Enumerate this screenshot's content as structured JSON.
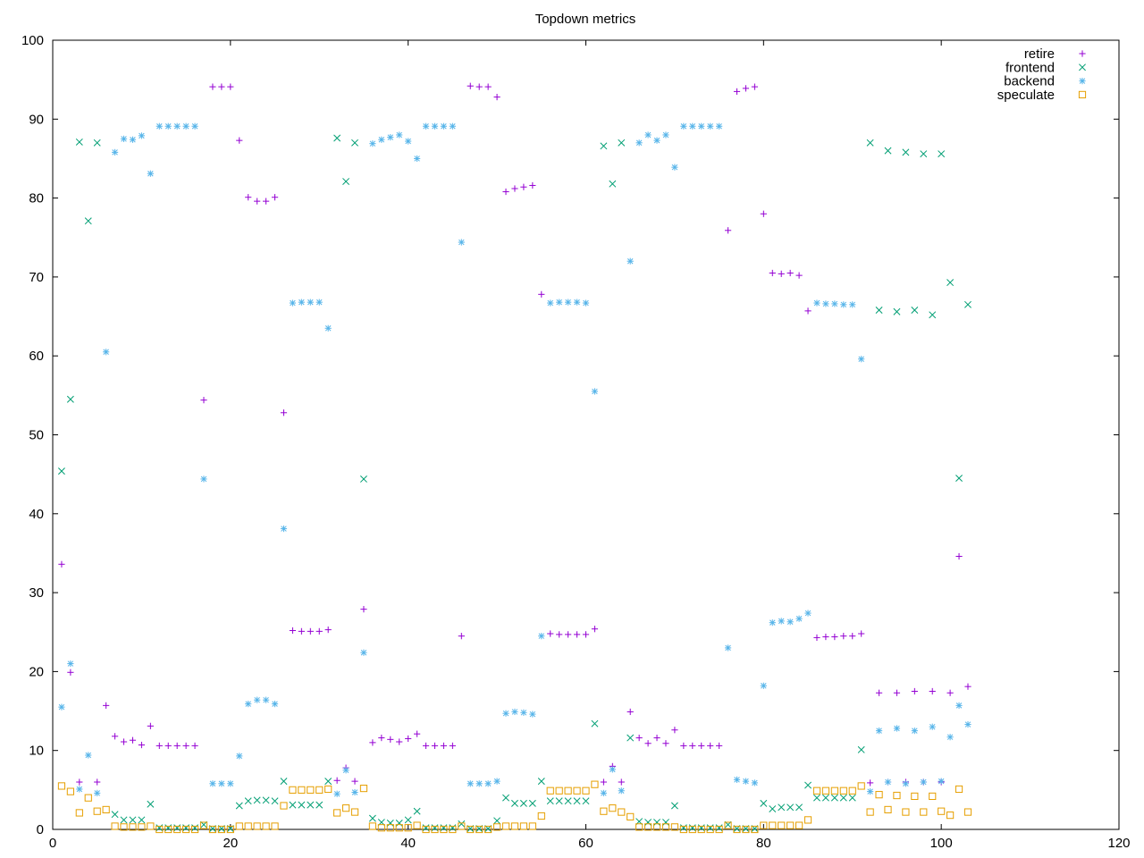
{
  "chart_data": {
    "type": "scatter",
    "title": "Topdown metrics",
    "xlabel": "",
    "ylabel": "",
    "xlim": [
      0,
      120
    ],
    "ylim": [
      0,
      100
    ],
    "x_ticks": [
      0,
      20,
      40,
      60,
      80,
      100,
      120
    ],
    "y_ticks": [
      0,
      10,
      20,
      30,
      40,
      50,
      60,
      70,
      80,
      90,
      100
    ],
    "grid": false,
    "legend_position": "top-right",
    "x": [
      1,
      2,
      3,
      4,
      5,
      6,
      7,
      8,
      9,
      10,
      11,
      12,
      13,
      14,
      15,
      16,
      17,
      18,
      19,
      20,
      21,
      22,
      23,
      24,
      25,
      26,
      27,
      28,
      29,
      30,
      31,
      32,
      33,
      34,
      35,
      36,
      37,
      38,
      39,
      40,
      41,
      42,
      43,
      44,
      45,
      46,
      47,
      48,
      49,
      50,
      51,
      52,
      53,
      54,
      55,
      56,
      57,
      58,
      59,
      60,
      61,
      62,
      63,
      64,
      65,
      66,
      67,
      68,
      69,
      70,
      71,
      72,
      73,
      74,
      75,
      76,
      77,
      78,
      79,
      80,
      81,
      82,
      83,
      84,
      85,
      86,
      87,
      88,
      89,
      90,
      91,
      92,
      93,
      94,
      95,
      96,
      97,
      98,
      99,
      100,
      101,
      102,
      103
    ],
    "series": [
      {
        "name": "retire",
        "color": "#9400d3",
        "marker": "plus",
        "values": [
          33.6,
          19.9,
          6.0,
          null,
          6.0,
          15.7,
          11.8,
          11.1,
          11.3,
          10.7,
          13.1,
          10.6,
          10.6,
          10.6,
          10.6,
          10.6,
          54.4,
          94.1,
          94.1,
          94.1,
          87.3,
          80.1,
          79.6,
          79.6,
          80.1,
          52.8,
          25.2,
          25.1,
          25.1,
          25.1,
          25.3,
          6.2,
          7.8,
          6.1,
          27.9,
          11.0,
          11.6,
          11.4,
          11.1,
          11.5,
          12.1,
          10.6,
          10.6,
          10.6,
          10.6,
          24.5,
          94.2,
          94.1,
          94.1,
          92.8,
          80.8,
          81.2,
          81.4,
          81.6,
          67.8,
          24.8,
          24.7,
          24.7,
          24.7,
          24.7,
          25.4,
          6.0,
          8.0,
          6.0,
          14.9,
          11.6,
          10.9,
          11.6,
          10.9,
          12.6,
          10.6,
          10.6,
          10.6,
          10.6,
          10.6,
          75.9,
          93.5,
          93.9,
          94.1,
          78.0,
          70.5,
          70.4,
          70.5,
          70.2,
          65.7,
          24.3,
          24.4,
          24.4,
          24.5,
          24.5,
          24.8,
          5.9,
          17.3,
          6.0,
          17.3,
          6.0,
          17.5,
          6.0,
          17.5,
          6.0,
          17.3,
          34.6,
          18.1
        ]
      },
      {
        "name": "frontend",
        "color": "#009e73",
        "marker": "cross",
        "values": [
          45.4,
          54.5,
          87.1,
          77.1,
          87.0,
          null,
          1.9,
          1.2,
          1.2,
          1.2,
          3.2,
          0.2,
          0.2,
          0.2,
          0.2,
          0.2,
          0.6,
          0.1,
          0.1,
          0.1,
          3.0,
          3.6,
          3.7,
          3.7,
          3.6,
          6.1,
          3.1,
          3.1,
          3.1,
          3.1,
          6.1,
          87.6,
          82.1,
          87.0,
          44.4,
          1.4,
          0.9,
          0.8,
          0.8,
          1.2,
          2.3,
          0.2,
          0.2,
          0.2,
          0.2,
          0.7,
          0.1,
          0.1,
          0.1,
          1.1,
          4.0,
          3.3,
          3.3,
          3.3,
          6.1,
          3.6,
          3.6,
          3.6,
          3.6,
          3.6,
          13.4,
          86.6,
          81.8,
          87.0,
          11.6,
          1.0,
          0.9,
          0.9,
          0.9,
          3.0,
          0.2,
          0.2,
          0.2,
          0.2,
          0.2,
          0.6,
          0.1,
          0.1,
          0.1,
          3.3,
          2.6,
          2.8,
          2.8,
          2.8,
          5.6,
          4.0,
          4.0,
          4.0,
          4.0,
          4.0,
          10.1,
          87.0,
          65.8,
          86.0,
          65.6,
          85.8,
          65.8,
          85.6,
          65.2,
          85.6,
          69.3,
          44.5,
          66.5
        ]
      },
      {
        "name": "backend",
        "color": "#56b4e9",
        "marker": "star",
        "values": [
          15.5,
          21.0,
          5.1,
          9.4,
          4.6,
          60.5,
          85.8,
          87.5,
          87.4,
          87.9,
          83.1,
          89.1,
          89.1,
          89.1,
          89.1,
          89.1,
          44.4,
          5.8,
          5.8,
          5.8,
          9.3,
          15.9,
          16.4,
          16.4,
          15.9,
          38.1,
          66.7,
          66.8,
          66.8,
          66.8,
          63.5,
          4.5,
          7.5,
          4.7,
          22.4,
          86.9,
          87.4,
          87.7,
          88.0,
          87.2,
          85.0,
          89.1,
          89.1,
          89.1,
          89.1,
          74.4,
          5.8,
          5.8,
          5.8,
          6.1,
          14.7,
          14.9,
          14.8,
          14.6,
          24.5,
          66.7,
          66.8,
          66.8,
          66.8,
          66.7,
          55.5,
          4.6,
          7.6,
          4.9,
          72.0,
          87.0,
          88.0,
          87.3,
          88.0,
          83.9,
          89.1,
          89.1,
          89.1,
          89.1,
          89.1,
          23.0,
          6.3,
          6.1,
          5.9,
          18.2,
          26.2,
          26.4,
          26.3,
          26.7,
          27.4,
          66.7,
          66.6,
          66.6,
          66.5,
          66.5,
          59.6,
          4.8,
          12.5,
          6.0,
          12.8,
          5.8,
          12.5,
          6.0,
          13.0,
          6.1,
          11.7,
          15.7,
          13.3
        ]
      },
      {
        "name": "speculate",
        "color": "#e69f00",
        "marker": "square",
        "values": [
          5.5,
          4.8,
          2.1,
          4.0,
          2.3,
          2.5,
          0.4,
          0.3,
          0.3,
          0.3,
          0.4,
          0.0,
          0.0,
          0.0,
          0.0,
          0.0,
          0.5,
          0.0,
          0.0,
          0.0,
          0.4,
          0.4,
          0.4,
          0.4,
          0.4,
          3.0,
          5.0,
          5.0,
          5.0,
          5.0,
          5.1,
          2.1,
          2.7,
          2.2,
          5.2,
          0.4,
          0.2,
          0.2,
          0.2,
          0.2,
          0.5,
          0.0,
          0.0,
          0.0,
          0.0,
          0.4,
          0.0,
          0.0,
          0.0,
          0.3,
          0.4,
          0.4,
          0.4,
          0.4,
          1.7,
          4.9,
          4.9,
          4.9,
          4.9,
          4.9,
          5.7,
          2.3,
          2.7,
          2.2,
          1.6,
          0.3,
          0.3,
          0.3,
          0.3,
          0.3,
          0.0,
          0.0,
          0.0,
          0.0,
          0.0,
          0.5,
          0.0,
          0.0,
          0.0,
          0.5,
          0.5,
          0.5,
          0.5,
          0.5,
          1.2,
          4.9,
          4.9,
          4.9,
          4.9,
          4.9,
          5.5,
          2.2,
          4.4,
          2.5,
          4.3,
          2.2,
          4.2,
          2.2,
          4.2,
          2.3,
          1.8,
          5.1,
          2.2
        ]
      }
    ]
  }
}
